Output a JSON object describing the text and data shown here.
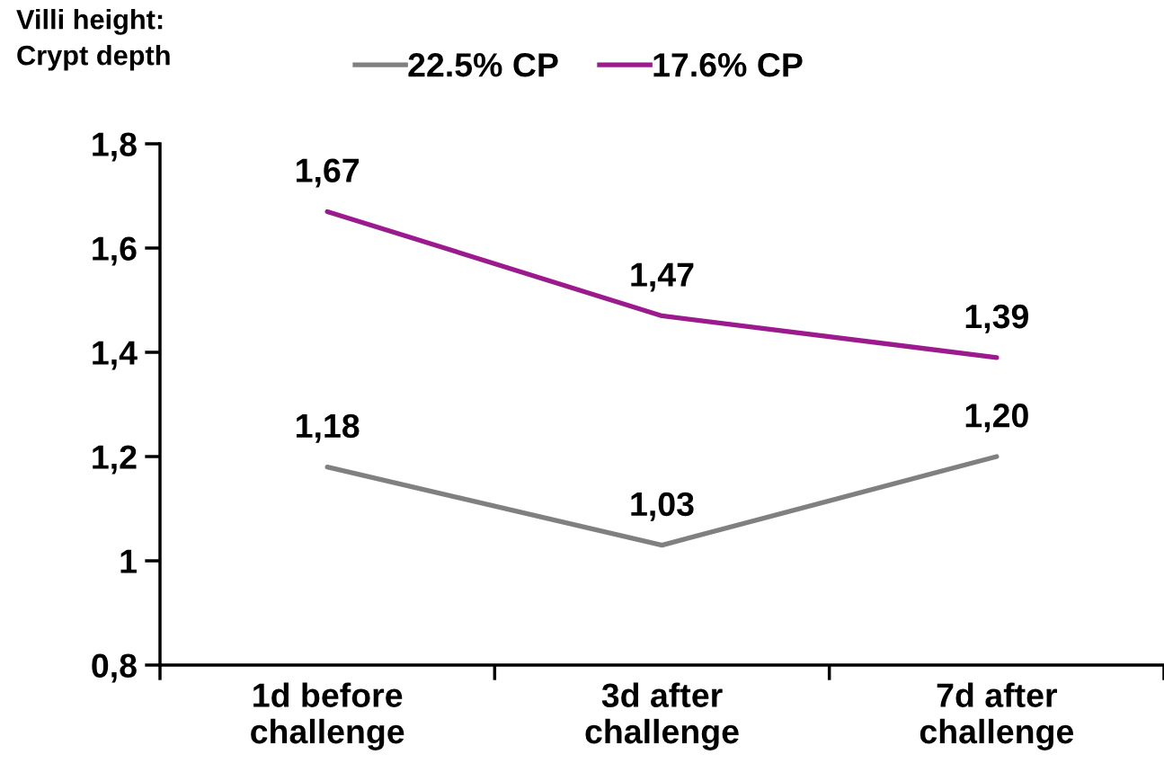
{
  "chart_data": {
    "type": "line",
    "ylabel": "Villi height:\nCrypt depth",
    "categories": [
      "1d before\nchallenge",
      "3d after\nchallenge",
      "7d after\nchallenge"
    ],
    "series": [
      {
        "name": "22.5% CP",
        "color": "#808080",
        "values": [
          1.18,
          1.03,
          1.2
        ],
        "value_labels": [
          "1,18",
          "1,03",
          "1,20"
        ]
      },
      {
        "name": "17.6% CP",
        "color": "#9b1b8f",
        "values": [
          1.67,
          1.47,
          1.39
        ],
        "value_labels": [
          "1,67",
          "1,47",
          "1,39"
        ]
      }
    ],
    "ylim": [
      0.8,
      1.8
    ],
    "yticks": [
      {
        "value": 0.8,
        "label": "0,8"
      },
      1,
      {
        "value": 1.2,
        "label": "1,2"
      },
      {
        "value": 1.4,
        "label": "1,4"
      },
      {
        "value": 1.6,
        "label": "1,6"
      },
      {
        "value": 1.8,
        "label": "1,8"
      }
    ],
    "grid": false,
    "legend": "top",
    "marker": "none",
    "line_style": "solid"
  }
}
